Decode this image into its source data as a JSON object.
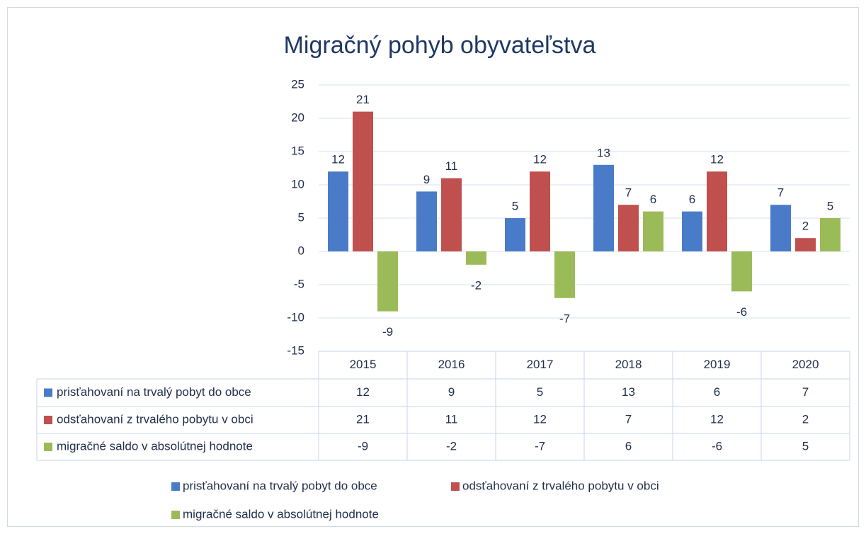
{
  "chart_data": {
    "type": "bar",
    "title": "Migračný pohyb obyvateľstva",
    "categories": [
      "2015",
      "2016",
      "2017",
      "2018",
      "2019",
      "2020"
    ],
    "series": [
      {
        "name": "prisťahovaní na trvalý pobyt do obce",
        "color": "#4a7bc8",
        "values": [
          12,
          9,
          5,
          13,
          6,
          7
        ]
      },
      {
        "name": "odsťahovaní z trvalého pobytu v obci",
        "color": "#c0504d",
        "values": [
          21,
          11,
          12,
          7,
          12,
          2
        ]
      },
      {
        "name": "migračné saldo v absolútnej hodnote",
        "color": "#9bbb59",
        "values": [
          -9,
          -2,
          -7,
          6,
          -6,
          5
        ]
      }
    ],
    "ylim": [
      -15,
      25
    ],
    "yticks": [
      -15,
      -10,
      -5,
      0,
      5,
      10,
      15,
      20,
      25
    ],
    "grid": true
  }
}
